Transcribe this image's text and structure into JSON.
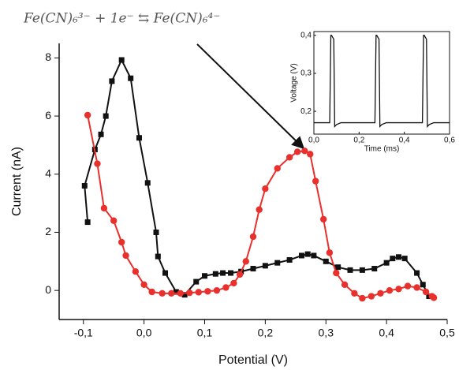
{
  "chart_data": [
    {
      "type": "line",
      "annotation": "Fe(CN)₆³⁻ + 1e⁻ ⇆ Fe(CN)₆⁴⁻",
      "x_label": "Potential (V)",
      "y_label": "Current (nA)",
      "xlim": [
        -0.14,
        0.5
      ],
      "ylim": [
        -1,
        8.5
      ],
      "xticks": [
        {
          "value": -0.1,
          "label": "-0,1"
        },
        {
          "value": 0,
          "label": "0,0"
        },
        {
          "value": 0.1,
          "label": "0,1"
        },
        {
          "value": 0.2,
          "label": "0,2"
        },
        {
          "value": 0.3,
          "label": "0,3"
        },
        {
          "value": 0.4,
          "label": "0,4"
        },
        {
          "value": 0.5,
          "label": "0,5"
        }
      ],
      "yticks": [
        0,
        2,
        4,
        6,
        8
      ],
      "series": [
        {
          "color": "#111111",
          "marker": "square",
          "x": [
            -0.093,
            -0.098,
            -0.081,
            -0.071,
            -0.063,
            -0.053,
            -0.037,
            -0.022,
            -0.008,
            0.006,
            0.02,
            0.023,
            0.035,
            0.053,
            0.067,
            0.086,
            0.1,
            0.118,
            0.13,
            0.143,
            0.16,
            0.18,
            0.2,
            0.22,
            0.24,
            0.26,
            0.27,
            0.28,
            0.3,
            0.32,
            0.34,
            0.36,
            0.38,
            0.4,
            0.41,
            0.42,
            0.43,
            0.45,
            0.46,
            0.47
          ],
          "values": [
            2.35,
            3.6,
            4.85,
            5.37,
            6.0,
            7.2,
            7.93,
            7.3,
            5.25,
            3.7,
            2.0,
            1.17,
            0.6,
            -0.05,
            -0.15,
            0.3,
            0.5,
            0.57,
            0.6,
            0.6,
            0.65,
            0.75,
            0.85,
            0.95,
            1.05,
            1.2,
            1.25,
            1.2,
            1.0,
            0.8,
            0.7,
            0.7,
            0.75,
            0.95,
            1.1,
            1.15,
            1.1,
            0.6,
            0.2,
            -0.2
          ]
        },
        {
          "color": "#e8302c",
          "marker": "circle",
          "x": [
            -0.093,
            -0.077,
            -0.066,
            -0.05,
            -0.037,
            -0.03,
            -0.014,
            0.0,
            0.013,
            0.03,
            0.045,
            0.06,
            0.075,
            0.09,
            0.105,
            0.12,
            0.135,
            0.148,
            0.158,
            0.168,
            0.18,
            0.19,
            0.2,
            0.22,
            0.24,
            0.253,
            0.265,
            0.274,
            0.283,
            0.296,
            0.306,
            0.317,
            0.331,
            0.347,
            0.36,
            0.375,
            0.39,
            0.405,
            0.42,
            0.435,
            0.45,
            0.465,
            0.475,
            0.478
          ],
          "values": [
            6.03,
            4.36,
            2.83,
            2.4,
            1.66,
            1.2,
            0.65,
            0.2,
            -0.05,
            -0.1,
            -0.1,
            -0.1,
            -0.08,
            -0.06,
            -0.03,
            0.0,
            0.1,
            0.25,
            0.55,
            1.0,
            1.85,
            2.78,
            3.5,
            4.2,
            4.58,
            4.77,
            4.8,
            4.69,
            3.76,
            2.45,
            1.3,
            0.6,
            0.2,
            -0.1,
            -0.27,
            -0.2,
            -0.1,
            0.0,
            0.05,
            0.15,
            0.1,
            -0.05,
            -0.2,
            -0.25
          ]
        }
      ]
    },
    {
      "type": "line",
      "x_label": "Time (ms)",
      "y_label": "Voltage (V)",
      "xlim": [
        0,
        0.6
      ],
      "ylim": [
        0.14,
        0.41
      ],
      "xticks": [
        {
          "value": 0,
          "label": "0,0"
        },
        {
          "value": 0.2,
          "label": "0,2"
        },
        {
          "value": 0.4,
          "label": "0,4"
        },
        {
          "value": 0.6,
          "label": "0,6"
        }
      ],
      "yticks": [
        {
          "value": 0.2,
          "label": "0,2"
        },
        {
          "value": 0.3,
          "label": "0,3"
        },
        {
          "value": 0.4,
          "label": "0,4"
        }
      ],
      "series": [
        {
          "color": "#111111",
          "x": [
            0,
            0.07,
            0.075,
            0.078,
            0.088,
            0.092,
            0.1,
            0.12,
            0.27,
            0.275,
            0.278,
            0.288,
            0.292,
            0.3,
            0.32,
            0.48,
            0.485,
            0.488,
            0.498,
            0.502,
            0.51,
            0.53,
            0.6
          ],
          "values": [
            0.17,
            0.17,
            0.4,
            0.4,
            0.39,
            0.16,
            0.165,
            0.17,
            0.17,
            0.4,
            0.4,
            0.39,
            0.16,
            0.165,
            0.17,
            0.17,
            0.4,
            0.4,
            0.39,
            0.16,
            0.165,
            0.17,
            0.17
          ]
        }
      ]
    }
  ]
}
